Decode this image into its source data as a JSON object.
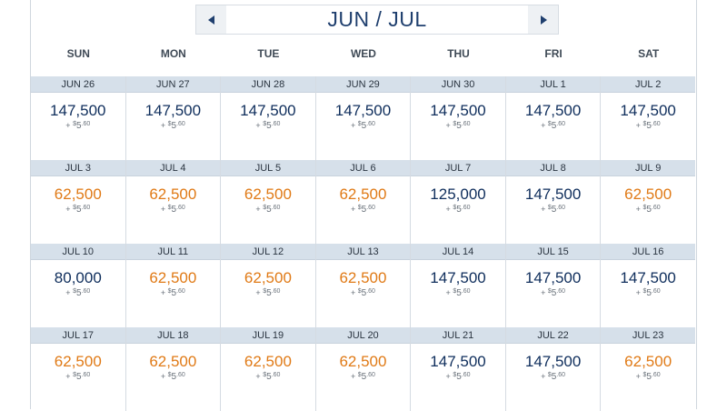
{
  "calendar": {
    "month_title": "JUN / JUL",
    "weekdays": [
      "SUN",
      "MON",
      "TUE",
      "WED",
      "THU",
      "FRI",
      "SAT"
    ],
    "fee": {
      "prefix": "+",
      "dollar": "$",
      "whole": "5",
      "cents": ".60"
    },
    "colors": {
      "regular_fare": "#0f2e5c",
      "saver_fare": "#e07a16",
      "date_bar": "#d6e0ea"
    },
    "weeks": [
      [
        {
          "date": "JUN 26",
          "miles": "147,500",
          "tier": "regular"
        },
        {
          "date": "JUN 27",
          "miles": "147,500",
          "tier": "regular"
        },
        {
          "date": "JUN 28",
          "miles": "147,500",
          "tier": "regular"
        },
        {
          "date": "JUN 29",
          "miles": "147,500",
          "tier": "regular"
        },
        {
          "date": "JUN 30",
          "miles": "147,500",
          "tier": "regular"
        },
        {
          "date": "JUL 1",
          "miles": "147,500",
          "tier": "regular"
        },
        {
          "date": "JUL 2",
          "miles": "147,500",
          "tier": "regular"
        }
      ],
      [
        {
          "date": "JUL 3",
          "miles": "62,500",
          "tier": "saver"
        },
        {
          "date": "JUL 4",
          "miles": "62,500",
          "tier": "saver"
        },
        {
          "date": "JUL 5",
          "miles": "62,500",
          "tier": "saver"
        },
        {
          "date": "JUL 6",
          "miles": "62,500",
          "tier": "saver"
        },
        {
          "date": "JUL 7",
          "miles": "125,000",
          "tier": "regular"
        },
        {
          "date": "JUL 8",
          "miles": "147,500",
          "tier": "regular"
        },
        {
          "date": "JUL 9",
          "miles": "62,500",
          "tier": "saver"
        }
      ],
      [
        {
          "date": "JUL 10",
          "miles": "80,000",
          "tier": "regular"
        },
        {
          "date": "JUL 11",
          "miles": "62,500",
          "tier": "saver"
        },
        {
          "date": "JUL 12",
          "miles": "62,500",
          "tier": "saver"
        },
        {
          "date": "JUL 13",
          "miles": "62,500",
          "tier": "saver"
        },
        {
          "date": "JUL 14",
          "miles": "147,500",
          "tier": "regular"
        },
        {
          "date": "JUL 15",
          "miles": "147,500",
          "tier": "regular"
        },
        {
          "date": "JUL 16",
          "miles": "147,500",
          "tier": "regular"
        }
      ],
      [
        {
          "date": "JUL 17",
          "miles": "62,500",
          "tier": "saver"
        },
        {
          "date": "JUL 18",
          "miles": "62,500",
          "tier": "saver"
        },
        {
          "date": "JUL 19",
          "miles": "62,500",
          "tier": "saver"
        },
        {
          "date": "JUL 20",
          "miles": "62,500",
          "tier": "saver"
        },
        {
          "date": "JUL 21",
          "miles": "147,500",
          "tier": "regular"
        },
        {
          "date": "JUL 22",
          "miles": "147,500",
          "tier": "regular"
        },
        {
          "date": "JUL 23",
          "miles": "62,500",
          "tier": "saver"
        }
      ]
    ]
  }
}
